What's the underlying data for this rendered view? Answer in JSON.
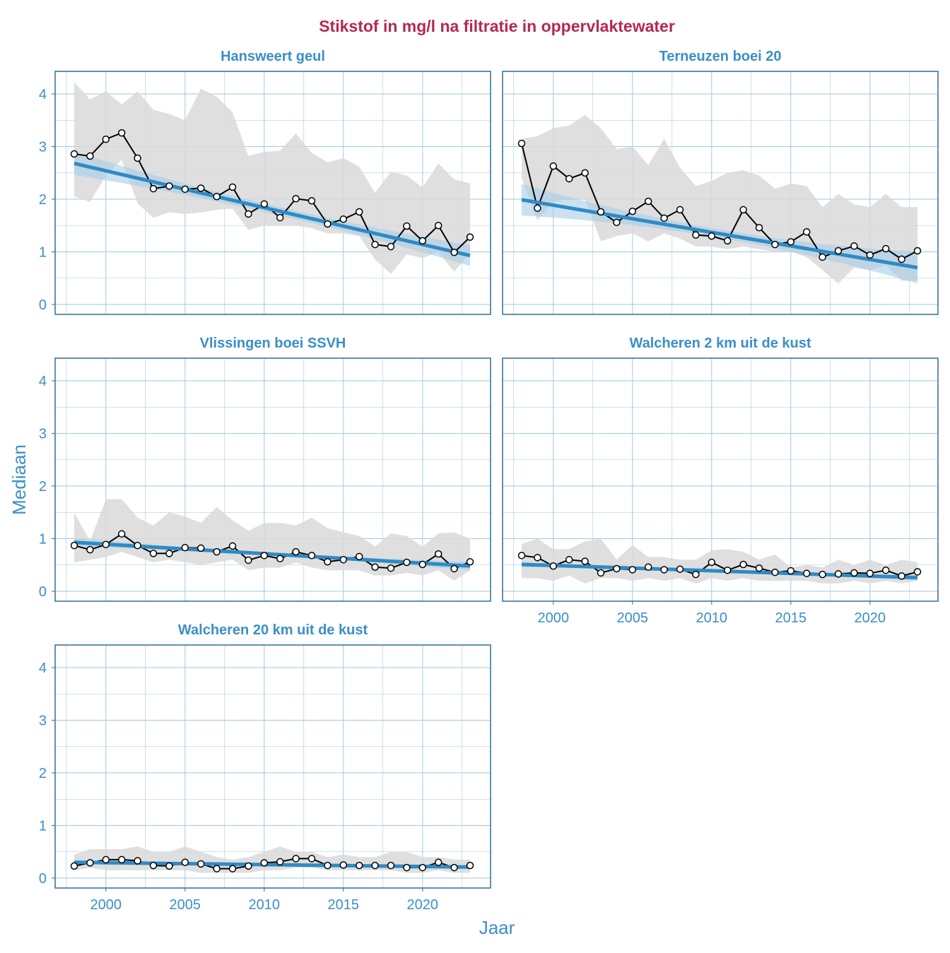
{
  "chart_data": {
    "type": "line",
    "title": "Stikstof in mg/l na filtratie in oppervlaktewater",
    "xlabel": "Jaar",
    "ylabel": "Mediaan",
    "xlim": [
      1997,
      2024.5
    ],
    "ylim": [
      -0.2,
      4.4
    ],
    "xticks": [
      2000,
      2005,
      2010,
      2015,
      2020
    ],
    "yticks": [
      0,
      1,
      2,
      3,
      4
    ],
    "grid": true,
    "colors": {
      "title": "#b5294e",
      "text": "#3a8fc7",
      "trend": "#2f8ac4",
      "band": "#d9d9d9",
      "ci": "#a6cde8",
      "line": "#000000",
      "grid": "#9ecae1",
      "border": "#2e6f99"
    },
    "years": [
      1998,
      1999,
      2000,
      2001,
      2002,
      2003,
      2004,
      2005,
      2006,
      2007,
      2008,
      2009,
      2010,
      2011,
      2012,
      2013,
      2014,
      2015,
      2016,
      2017,
      2018,
      2019,
      2020,
      2021,
      2022,
      2023
    ],
    "panels": [
      {
        "name": "Hansweert geul",
        "values": [
          2.86,
          2.82,
          3.14,
          3.26,
          2.78,
          2.2,
          2.25,
          2.19,
          2.21,
          2.05,
          2.23,
          1.72,
          1.91,
          1.65,
          2.01,
          1.97,
          1.53,
          1.62,
          1.76,
          1.14,
          1.1,
          1.49,
          1.21,
          1.5,
          0.99,
          1.28
        ],
        "upper": [
          4.22,
          3.9,
          4.05,
          3.8,
          4.05,
          3.7,
          3.62,
          3.5,
          4.1,
          3.95,
          3.65,
          2.82,
          2.9,
          2.92,
          3.25,
          2.88,
          2.7,
          2.78,
          2.62,
          2.12,
          2.52,
          2.45,
          2.22,
          2.68,
          2.38,
          2.3
        ],
        "lower": [
          2.05,
          1.95,
          2.45,
          2.75,
          1.92,
          1.65,
          1.75,
          1.72,
          1.75,
          1.8,
          1.82,
          1.42,
          1.5,
          1.5,
          1.5,
          1.45,
          1.35,
          1.35,
          1.3,
          0.85,
          0.58,
          0.95,
          0.88,
          1.0,
          0.62,
          0.98
        ],
        "trend": [
          2.68,
          0.93
        ],
        "trend_ci": [
          0.22,
          0.08,
          0.2
        ]
      },
      {
        "name": "Terneuzen boei 20",
        "values": [
          3.06,
          1.83,
          2.63,
          2.39,
          2.5,
          1.76,
          1.56,
          1.77,
          1.96,
          1.64,
          1.8,
          1.32,
          1.3,
          1.21,
          1.8,
          1.46,
          1.14,
          1.19,
          1.38,
          0.9,
          1.02,
          1.11,
          0.94,
          1.06,
          0.86,
          1.02
        ],
        "upper": [
          3.15,
          3.2,
          3.35,
          3.4,
          3.6,
          3.35,
          2.95,
          3.0,
          2.65,
          3.15,
          2.6,
          2.25,
          2.35,
          2.5,
          2.55,
          2.45,
          2.2,
          2.3,
          2.25,
          1.85,
          2.1,
          1.9,
          1.85,
          2.1,
          1.85,
          1.85
        ],
        "lower": [
          2.4,
          1.6,
          1.95,
          2.0,
          2.0,
          1.2,
          1.3,
          1.35,
          1.2,
          1.35,
          1.25,
          1.1,
          1.1,
          1.05,
          1.1,
          1.05,
          1.0,
          1.0,
          0.9,
          0.65,
          0.4,
          0.7,
          0.65,
          0.75,
          0.45,
          0.45
        ],
        "trend": [
          1.99,
          0.7
        ],
        "trend_ci": [
          0.3,
          0.08,
          0.3
        ]
      },
      {
        "name": "Vlissingen boei SSVH",
        "values": [
          0.87,
          0.79,
          0.89,
          1.09,
          0.87,
          0.72,
          0.72,
          0.83,
          0.82,
          0.75,
          0.86,
          0.59,
          0.68,
          0.62,
          0.75,
          0.68,
          0.56,
          0.6,
          0.66,
          0.46,
          0.44,
          0.55,
          0.51,
          0.71,
          0.43,
          0.56
        ],
        "upper": [
          1.5,
          0.95,
          1.75,
          1.75,
          1.4,
          1.25,
          1.5,
          1.42,
          1.3,
          1.6,
          1.35,
          1.15,
          1.3,
          1.3,
          1.25,
          1.4,
          1.2,
          1.12,
          1.05,
          0.85,
          1.1,
          1.05,
          0.85,
          1.1,
          1.12,
          1.0
        ],
        "lower": [
          0.55,
          0.6,
          0.65,
          0.75,
          0.65,
          0.55,
          0.6,
          0.55,
          0.5,
          0.55,
          0.6,
          0.4,
          0.45,
          0.45,
          0.55,
          0.45,
          0.4,
          0.4,
          0.4,
          0.3,
          0.3,
          0.35,
          0.3,
          0.4,
          0.2,
          0.4
        ],
        "trend": [
          0.93,
          0.48
        ],
        "trend_ci": [
          0.08,
          0.03,
          0.08
        ]
      },
      {
        "name": "Walcheren 2 km uit de kust",
        "values": [
          0.68,
          0.64,
          0.48,
          0.6,
          0.57,
          0.35,
          0.43,
          0.41,
          0.46,
          0.41,
          0.42,
          0.32,
          0.55,
          0.4,
          0.51,
          0.44,
          0.36,
          0.39,
          0.34,
          0.32,
          0.33,
          0.35,
          0.34,
          0.4,
          0.29,
          0.37
        ],
        "upper": [
          0.9,
          1.0,
          0.8,
          0.8,
          0.95,
          1.0,
          0.6,
          0.88,
          0.65,
          0.65,
          0.6,
          0.6,
          0.78,
          0.8,
          0.75,
          0.6,
          0.7,
          0.45,
          0.5,
          0.45,
          0.6,
          0.5,
          0.6,
          0.5,
          0.6,
          0.55
        ],
        "lower": [
          0.25,
          0.25,
          0.2,
          0.3,
          0.15,
          0.25,
          0.25,
          0.2,
          0.25,
          0.2,
          0.25,
          0.15,
          0.25,
          0.2,
          0.25,
          0.2,
          0.2,
          0.2,
          0.2,
          0.15,
          0.15,
          0.2,
          0.15,
          0.2,
          0.15,
          0.2
        ],
        "trend": [
          0.51,
          0.26
        ],
        "trend_ci": [
          0.05,
          0.02,
          0.05
        ]
      },
      {
        "name": "Walcheren 20 km uit de kust",
        "values": [
          0.23,
          0.29,
          0.35,
          0.35,
          0.33,
          0.24,
          0.23,
          0.3,
          0.27,
          0.18,
          0.18,
          0.23,
          0.29,
          0.31,
          0.37,
          0.37,
          0.24,
          0.25,
          0.24,
          0.24,
          0.24,
          0.2,
          0.2,
          0.3,
          0.2,
          0.24
        ],
        "upper": [
          0.45,
          0.55,
          0.55,
          0.55,
          0.6,
          0.5,
          0.5,
          0.6,
          0.5,
          0.4,
          0.35,
          0.4,
          0.5,
          0.6,
          0.5,
          0.5,
          0.4,
          0.45,
          0.4,
          0.4,
          0.5,
          0.5,
          0.4,
          0.4,
          0.35,
          0.35
        ],
        "lower": [
          0.15,
          0.2,
          0.15,
          0.15,
          0.15,
          0.15,
          0.15,
          0.15,
          0.1,
          0.1,
          0.1,
          0.1,
          0.15,
          0.15,
          0.2,
          0.2,
          0.15,
          0.15,
          0.15,
          0.15,
          0.15,
          0.1,
          0.1,
          0.15,
          0.1,
          0.1
        ],
        "trend": [
          0.3,
          0.21
        ],
        "trend_ci": [
          0.04,
          0.02,
          0.04
        ]
      }
    ]
  }
}
